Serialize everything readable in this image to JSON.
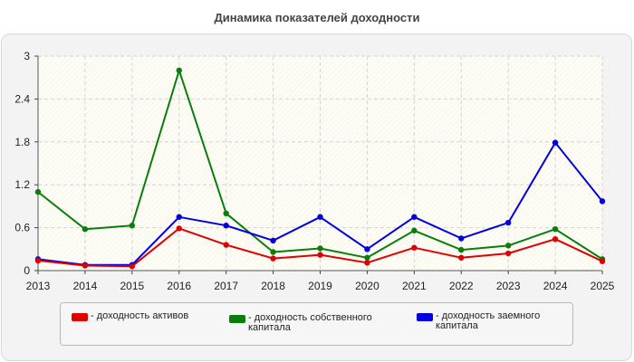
{
  "title": "Динамика показателей доходности",
  "chart_data": {
    "type": "line",
    "title": "Динамика показателей доходности",
    "xlabel": "",
    "ylabel": "",
    "x": [
      "2013",
      "2014",
      "2015",
      "2016",
      "2017",
      "2018",
      "2019",
      "2020",
      "2021",
      "2022",
      "2023",
      "2024",
      "2025"
    ],
    "ylim": [
      0,
      3
    ],
    "yticks": [
      "0",
      "0.6",
      "1.2",
      "1.8",
      "2.4",
      "3"
    ],
    "grid": true,
    "legend_position": "bottom",
    "series": [
      {
        "name": "- доходность собственного капитала",
        "color": "#0a7d0a",
        "values": [
          1.1,
          0.58,
          0.63,
          2.8,
          0.8,
          0.26,
          0.31,
          0.18,
          0.56,
          0.29,
          0.35,
          0.58,
          0.16
        ]
      },
      {
        "name": "- доходность заемного капитала",
        "color": "#0000e0",
        "values": [
          0.16,
          0.08,
          0.08,
          0.75,
          0.63,
          0.42,
          0.75,
          0.3,
          0.75,
          0.45,
          0.67,
          1.79,
          0.97
        ]
      },
      {
        "name": "- доходность активов",
        "color": "#e00000",
        "values": [
          0.14,
          0.07,
          0.06,
          0.59,
          0.36,
          0.17,
          0.22,
          0.11,
          0.32,
          0.18,
          0.24,
          0.44,
          0.13
        ]
      }
    ]
  },
  "legend": {
    "items": [
      {
        "label": "- доходность активов",
        "color": "#e00000"
      },
      {
        "label": "- доходность собственного капитала",
        "color": "#0a7d0a"
      },
      {
        "label": "- доходность заемного капитала",
        "color": "#0000e0"
      }
    ]
  }
}
